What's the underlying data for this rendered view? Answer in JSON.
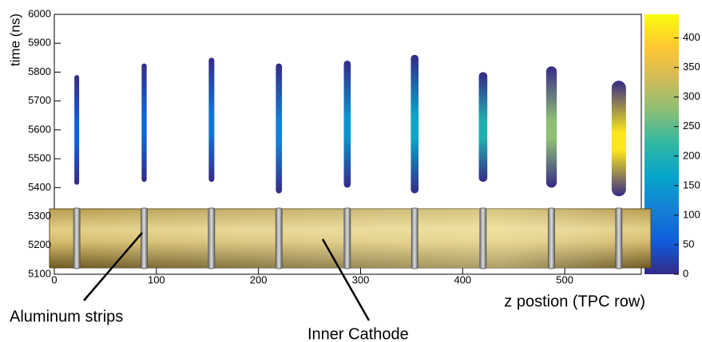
{
  "chart_data": {
    "type": "heatmap",
    "xlabel": "z postion (TPC row)",
    "ylabel": "time (ns)",
    "xlim": [
      0,
      575
    ],
    "ylim": [
      5100,
      6000
    ],
    "xticks": [
      0,
      100,
      200,
      300,
      400,
      500
    ],
    "yticks": [
      5100,
      5200,
      5300,
      5400,
      5500,
      5600,
      5700,
      5800,
      5900,
      6000
    ],
    "x": [
      22,
      88,
      154,
      220,
      287,
      353,
      420,
      487,
      553
    ],
    "y_low": [
      5410,
      5420,
      5420,
      5380,
      5400,
      5380,
      5420,
      5400,
      5370
    ],
    "y_high": [
      5790,
      5830,
      5850,
      5830,
      5840,
      5860,
      5800,
      5820,
      5770
    ],
    "values": [
      60,
      70,
      90,
      110,
      140,
      170,
      200,
      280,
      420
    ],
    "zlim": [
      0,
      440
    ],
    "zticks": [
      0,
      50,
      100,
      150,
      200,
      250,
      300,
      350,
      400
    ],
    "palette": [
      "#352a87",
      "#0f5cdd",
      "#1481d6",
      "#06a4ca",
      "#2eb7a4",
      "#87bf77",
      "#d1bb59",
      "#fec832",
      "#f9fb0e"
    ],
    "annotations": [
      "Aluminum strips",
      "Inner Cathode"
    ]
  }
}
